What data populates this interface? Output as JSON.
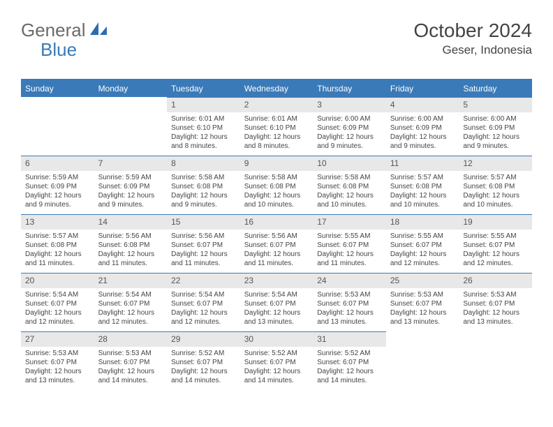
{
  "logo": {
    "text_general": "General",
    "text_blue": "Blue",
    "icon_color": "#2a6db0"
  },
  "header": {
    "month_title": "October 2024",
    "location": "Geser, Indonesia",
    "title_color": "#444444",
    "title_fontsize": 28,
    "location_fontsize": 17
  },
  "calendar": {
    "header_bg": "#3a7ab8",
    "header_fg": "#ffffff",
    "daynum_bg": "#e8e8e8",
    "border_color": "#3a7ab8",
    "body_fontsize": 10,
    "days_of_week": [
      "Sunday",
      "Monday",
      "Tuesday",
      "Wednesday",
      "Thursday",
      "Friday",
      "Saturday"
    ],
    "weeks": [
      [
        null,
        null,
        {
          "num": "1",
          "sunrise": "Sunrise: 6:01 AM",
          "sunset": "Sunset: 6:10 PM",
          "daylight": "Daylight: 12 hours and 8 minutes."
        },
        {
          "num": "2",
          "sunrise": "Sunrise: 6:01 AM",
          "sunset": "Sunset: 6:10 PM",
          "daylight": "Daylight: 12 hours and 8 minutes."
        },
        {
          "num": "3",
          "sunrise": "Sunrise: 6:00 AM",
          "sunset": "Sunset: 6:09 PM",
          "daylight": "Daylight: 12 hours and 9 minutes."
        },
        {
          "num": "4",
          "sunrise": "Sunrise: 6:00 AM",
          "sunset": "Sunset: 6:09 PM",
          "daylight": "Daylight: 12 hours and 9 minutes."
        },
        {
          "num": "5",
          "sunrise": "Sunrise: 6:00 AM",
          "sunset": "Sunset: 6:09 PM",
          "daylight": "Daylight: 12 hours and 9 minutes."
        }
      ],
      [
        {
          "num": "6",
          "sunrise": "Sunrise: 5:59 AM",
          "sunset": "Sunset: 6:09 PM",
          "daylight": "Daylight: 12 hours and 9 minutes."
        },
        {
          "num": "7",
          "sunrise": "Sunrise: 5:59 AM",
          "sunset": "Sunset: 6:09 PM",
          "daylight": "Daylight: 12 hours and 9 minutes."
        },
        {
          "num": "8",
          "sunrise": "Sunrise: 5:58 AM",
          "sunset": "Sunset: 6:08 PM",
          "daylight": "Daylight: 12 hours and 9 minutes."
        },
        {
          "num": "9",
          "sunrise": "Sunrise: 5:58 AM",
          "sunset": "Sunset: 6:08 PM",
          "daylight": "Daylight: 12 hours and 10 minutes."
        },
        {
          "num": "10",
          "sunrise": "Sunrise: 5:58 AM",
          "sunset": "Sunset: 6:08 PM",
          "daylight": "Daylight: 12 hours and 10 minutes."
        },
        {
          "num": "11",
          "sunrise": "Sunrise: 5:57 AM",
          "sunset": "Sunset: 6:08 PM",
          "daylight": "Daylight: 12 hours and 10 minutes."
        },
        {
          "num": "12",
          "sunrise": "Sunrise: 5:57 AM",
          "sunset": "Sunset: 6:08 PM",
          "daylight": "Daylight: 12 hours and 10 minutes."
        }
      ],
      [
        {
          "num": "13",
          "sunrise": "Sunrise: 5:57 AM",
          "sunset": "Sunset: 6:08 PM",
          "daylight": "Daylight: 12 hours and 11 minutes."
        },
        {
          "num": "14",
          "sunrise": "Sunrise: 5:56 AM",
          "sunset": "Sunset: 6:08 PM",
          "daylight": "Daylight: 12 hours and 11 minutes."
        },
        {
          "num": "15",
          "sunrise": "Sunrise: 5:56 AM",
          "sunset": "Sunset: 6:07 PM",
          "daylight": "Daylight: 12 hours and 11 minutes."
        },
        {
          "num": "16",
          "sunrise": "Sunrise: 5:56 AM",
          "sunset": "Sunset: 6:07 PM",
          "daylight": "Daylight: 12 hours and 11 minutes."
        },
        {
          "num": "17",
          "sunrise": "Sunrise: 5:55 AM",
          "sunset": "Sunset: 6:07 PM",
          "daylight": "Daylight: 12 hours and 11 minutes."
        },
        {
          "num": "18",
          "sunrise": "Sunrise: 5:55 AM",
          "sunset": "Sunset: 6:07 PM",
          "daylight": "Daylight: 12 hours and 12 minutes."
        },
        {
          "num": "19",
          "sunrise": "Sunrise: 5:55 AM",
          "sunset": "Sunset: 6:07 PM",
          "daylight": "Daylight: 12 hours and 12 minutes."
        }
      ],
      [
        {
          "num": "20",
          "sunrise": "Sunrise: 5:54 AM",
          "sunset": "Sunset: 6:07 PM",
          "daylight": "Daylight: 12 hours and 12 minutes."
        },
        {
          "num": "21",
          "sunrise": "Sunrise: 5:54 AM",
          "sunset": "Sunset: 6:07 PM",
          "daylight": "Daylight: 12 hours and 12 minutes."
        },
        {
          "num": "22",
          "sunrise": "Sunrise: 5:54 AM",
          "sunset": "Sunset: 6:07 PM",
          "daylight": "Daylight: 12 hours and 12 minutes."
        },
        {
          "num": "23",
          "sunrise": "Sunrise: 5:54 AM",
          "sunset": "Sunset: 6:07 PM",
          "daylight": "Daylight: 12 hours and 13 minutes."
        },
        {
          "num": "24",
          "sunrise": "Sunrise: 5:53 AM",
          "sunset": "Sunset: 6:07 PM",
          "daylight": "Daylight: 12 hours and 13 minutes."
        },
        {
          "num": "25",
          "sunrise": "Sunrise: 5:53 AM",
          "sunset": "Sunset: 6:07 PM",
          "daylight": "Daylight: 12 hours and 13 minutes."
        },
        {
          "num": "26",
          "sunrise": "Sunrise: 5:53 AM",
          "sunset": "Sunset: 6:07 PM",
          "daylight": "Daylight: 12 hours and 13 minutes."
        }
      ],
      [
        {
          "num": "27",
          "sunrise": "Sunrise: 5:53 AM",
          "sunset": "Sunset: 6:07 PM",
          "daylight": "Daylight: 12 hours and 13 minutes."
        },
        {
          "num": "28",
          "sunrise": "Sunrise: 5:53 AM",
          "sunset": "Sunset: 6:07 PM",
          "daylight": "Daylight: 12 hours and 14 minutes."
        },
        {
          "num": "29",
          "sunrise": "Sunrise: 5:52 AM",
          "sunset": "Sunset: 6:07 PM",
          "daylight": "Daylight: 12 hours and 14 minutes."
        },
        {
          "num": "30",
          "sunrise": "Sunrise: 5:52 AM",
          "sunset": "Sunset: 6:07 PM",
          "daylight": "Daylight: 12 hours and 14 minutes."
        },
        {
          "num": "31",
          "sunrise": "Sunrise: 5:52 AM",
          "sunset": "Sunset: 6:07 PM",
          "daylight": "Daylight: 12 hours and 14 minutes."
        },
        null,
        null
      ]
    ]
  }
}
